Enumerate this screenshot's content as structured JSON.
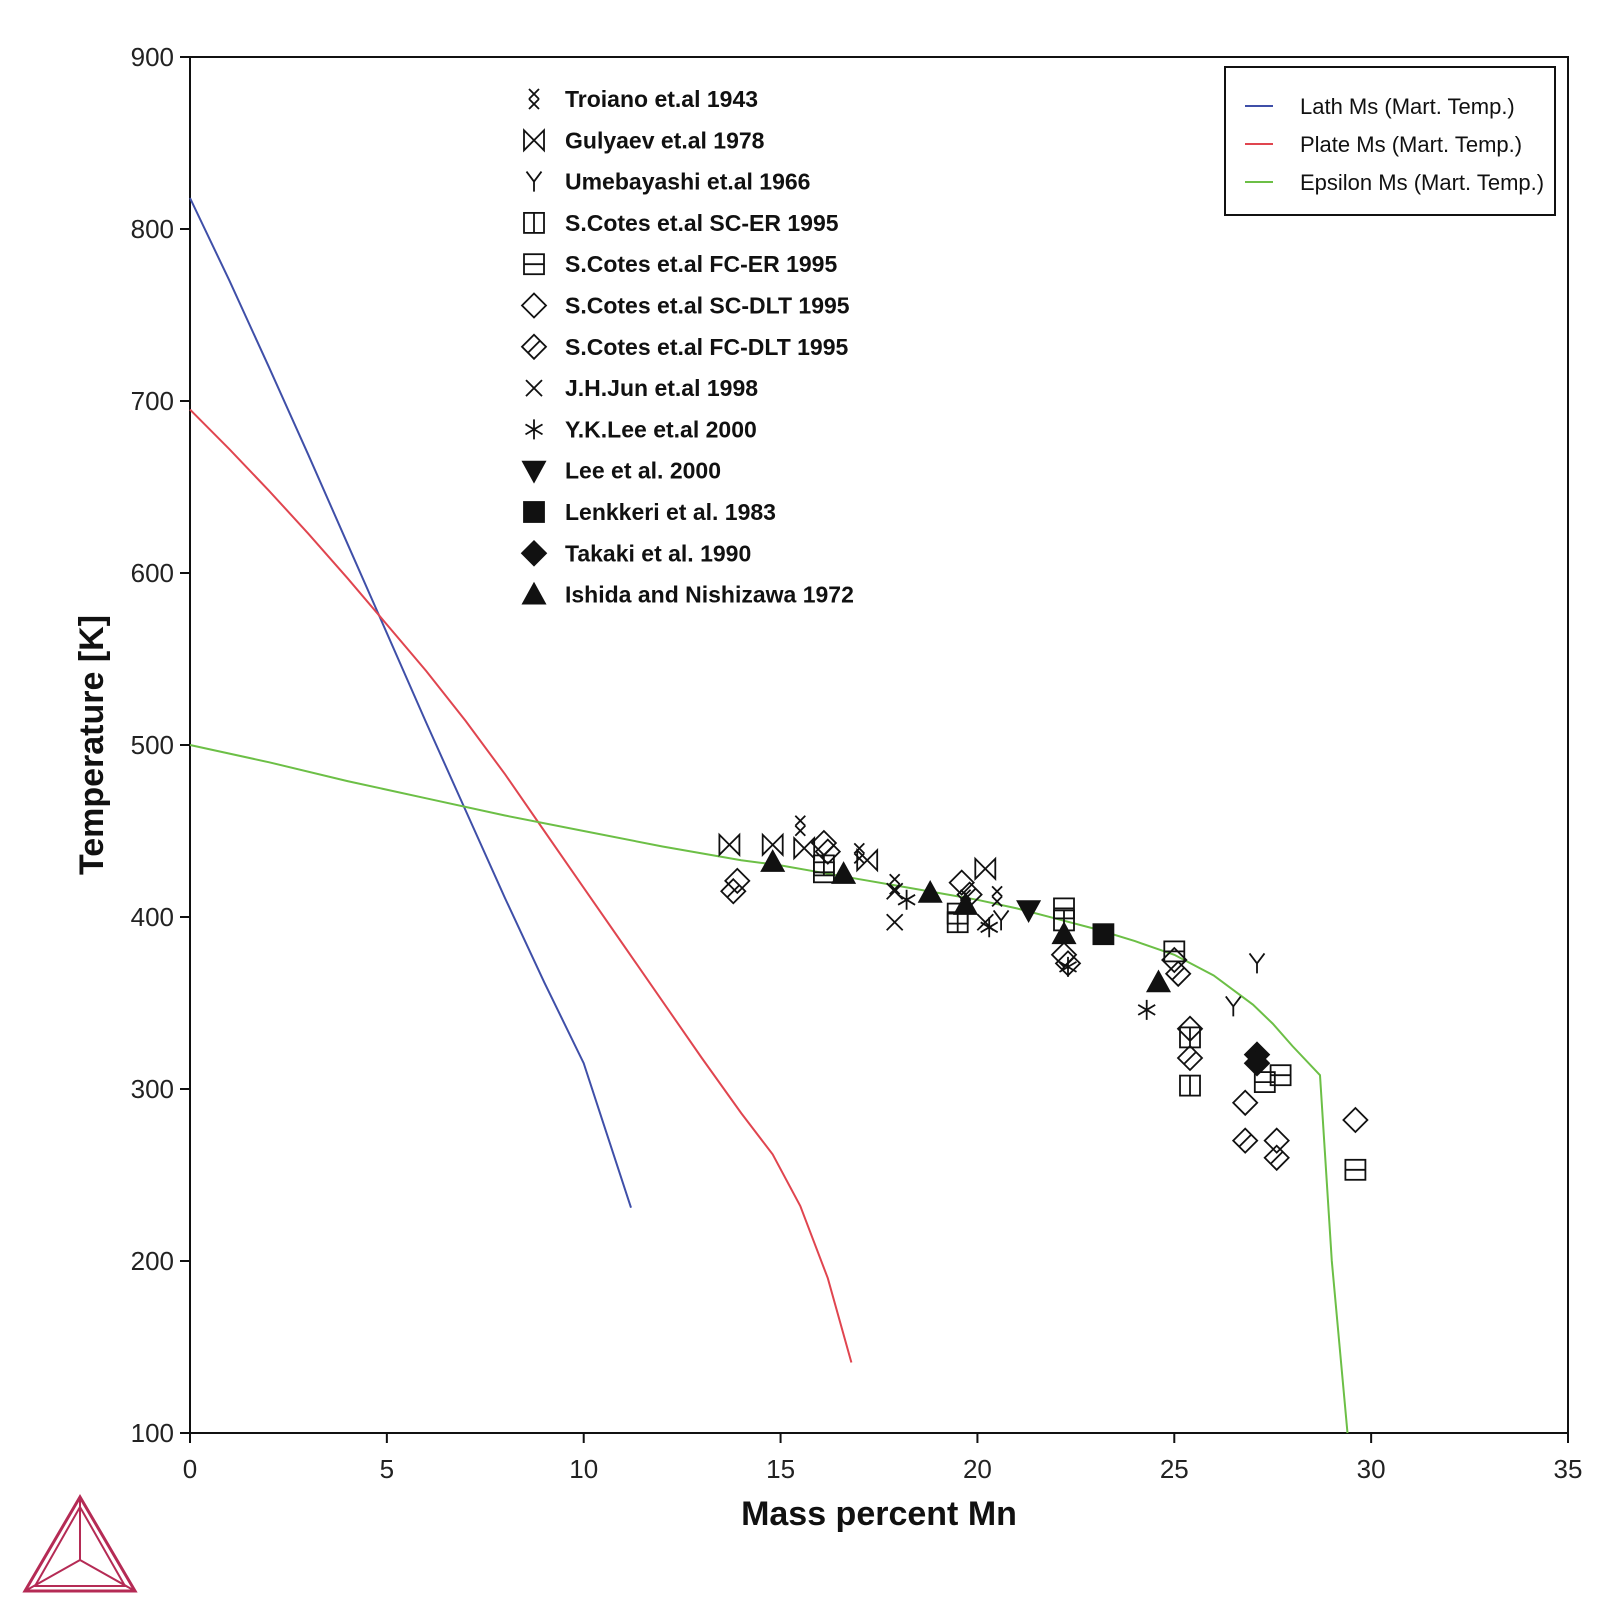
{
  "chart_data": {
    "type": "scatter",
    "xlabel": "Mass percent Mn",
    "ylabel": "Temperature [K]",
    "xlim": [
      0,
      35
    ],
    "ylim": [
      100,
      900
    ],
    "xticks": [
      0,
      5,
      10,
      15,
      20,
      25,
      30,
      35
    ],
    "yticks": [
      100,
      200,
      300,
      400,
      500,
      600,
      700,
      800,
      900
    ],
    "grid": false,
    "lines": [
      {
        "name": "Lath Ms (Mart. Temp.)",
        "color": "#3f4fa8",
        "points": [
          [
            0,
            818
          ],
          [
            1,
            770
          ],
          [
            2,
            720
          ],
          [
            3,
            669
          ],
          [
            4,
            617
          ],
          [
            5,
            565
          ],
          [
            6,
            513
          ],
          [
            7,
            462
          ],
          [
            8,
            411
          ],
          [
            9,
            362
          ],
          [
            10,
            315
          ],
          [
            10.5,
            280
          ],
          [
            11.2,
            231
          ]
        ]
      },
      {
        "name": "Plate Ms (Mart. Temp.)",
        "color": "#e0454f",
        "points": [
          [
            0,
            695
          ],
          [
            1,
            672
          ],
          [
            2,
            648
          ],
          [
            3,
            623
          ],
          [
            4,
            597
          ],
          [
            5,
            570
          ],
          [
            6,
            543
          ],
          [
            7,
            514
          ],
          [
            8,
            483
          ],
          [
            9,
            450
          ],
          [
            10,
            417
          ],
          [
            11,
            384
          ],
          [
            12,
            351
          ],
          [
            13,
            318
          ],
          [
            14,
            286
          ],
          [
            14.8,
            262
          ],
          [
            15.5,
            232
          ],
          [
            16.2,
            190
          ],
          [
            16.8,
            141
          ]
        ]
      },
      {
        "name": "Epsilon Ms (Mart. Temp.)",
        "color": "#6cbf46",
        "points": [
          [
            0,
            500
          ],
          [
            2,
            490
          ],
          [
            4,
            479
          ],
          [
            6,
            469
          ],
          [
            8,
            459
          ],
          [
            10,
            450
          ],
          [
            12,
            441
          ],
          [
            14,
            433
          ],
          [
            15,
            430
          ],
          [
            16,
            426
          ],
          [
            17,
            422
          ],
          [
            18,
            418
          ],
          [
            19,
            414
          ],
          [
            20,
            410
          ],
          [
            21,
            405
          ],
          [
            22,
            399
          ],
          [
            23,
            393
          ],
          [
            24,
            386
          ],
          [
            25,
            378
          ],
          [
            26,
            366
          ],
          [
            27,
            349
          ],
          [
            27.5,
            338
          ],
          [
            28,
            325
          ],
          [
            28.7,
            308
          ],
          [
            29,
            200
          ],
          [
            29.4,
            100
          ]
        ]
      }
    ],
    "legend_lines_position": "top-right",
    "legend_data_position": "top-center",
    "series": [
      {
        "name": "Troiano et.al 1943",
        "marker": "double-x",
        "points": [
          [
            15.5,
            453
          ],
          [
            17,
            437
          ],
          [
            17.9,
            419
          ],
          [
            19.7,
            410
          ],
          [
            20.5,
            412
          ]
        ]
      },
      {
        "name": "Gulyaev et.al 1978",
        "marker": "bowtie",
        "points": [
          [
            13.7,
            442
          ],
          [
            14.8,
            442
          ],
          [
            15.6,
            440
          ],
          [
            17.2,
            433
          ],
          [
            20.2,
            428
          ]
        ]
      },
      {
        "name": "Umebayashi et.al 1966",
        "marker": "y",
        "points": [
          [
            20.6,
            398
          ],
          [
            26.5,
            348
          ],
          [
            27.1,
            373
          ]
        ]
      },
      {
        "name": "S.Cotes et.al SC-ER 1995",
        "marker": "square-v",
        "points": [
          [
            16.1,
            430
          ],
          [
            19.5,
            397
          ],
          [
            22.2,
            398
          ],
          [
            25.4,
            330
          ],
          [
            25.4,
            302
          ]
        ]
      },
      {
        "name": "S.Cotes et.al FC-ER 1995",
        "marker": "square-h",
        "points": [
          [
            16.1,
            426
          ],
          [
            19.5,
            402
          ],
          [
            22.2,
            405
          ],
          [
            25,
            380
          ],
          [
            27.3,
            304
          ],
          [
            27.7,
            308
          ],
          [
            29.6,
            253
          ]
        ]
      },
      {
        "name": "S.Cotes et.al SC-DLT 1995",
        "marker": "diamond",
        "points": [
          [
            13.9,
            421
          ],
          [
            16.1,
            443
          ],
          [
            19.6,
            420
          ],
          [
            22.2,
            378
          ],
          [
            25,
            375
          ],
          [
            25.4,
            335
          ],
          [
            26.8,
            292
          ],
          [
            27.6,
            270
          ],
          [
            29.6,
            282
          ]
        ]
      },
      {
        "name": "S.Cotes et.al FC-DLT 1995",
        "marker": "diamond-slash",
        "points": [
          [
            13.8,
            415
          ],
          [
            16.2,
            438
          ],
          [
            19.8,
            413
          ],
          [
            22.3,
            373
          ],
          [
            25.1,
            367
          ],
          [
            25.4,
            318
          ],
          [
            26.8,
            270
          ],
          [
            27.6,
            260
          ]
        ]
      },
      {
        "name": "J.H.Jun et.al 1998",
        "marker": "x",
        "points": [
          [
            17.9,
            397
          ],
          [
            17.9,
            415
          ],
          [
            20.2,
            397
          ]
        ]
      },
      {
        "name": "Y.K.Lee et.al 2000",
        "marker": "asterisk",
        "points": [
          [
            18.2,
            410
          ],
          [
            20.3,
            394
          ],
          [
            22.3,
            371
          ],
          [
            24.3,
            346
          ]
        ]
      },
      {
        "name": "Lee et al. 2000",
        "marker": "triangle-down",
        "points": [
          [
            21.3,
            404
          ]
        ]
      },
      {
        "name": "Lenkkeri et al. 1983",
        "marker": "square-filled",
        "points": [
          [
            23.2,
            390
          ]
        ]
      },
      {
        "name": "Takaki et al. 1990",
        "marker": "diamond-filled",
        "points": [
          [
            27.1,
            320
          ],
          [
            27.1,
            315
          ]
        ]
      },
      {
        "name": "Ishida and Nishizawa 1972",
        "marker": "triangle-up",
        "points": [
          [
            14.8,
            432
          ],
          [
            16.6,
            425
          ],
          [
            18.8,
            414
          ],
          [
            19.7,
            407
          ],
          [
            22.2,
            390
          ],
          [
            24.6,
            362
          ]
        ]
      }
    ]
  },
  "logo": {
    "name": "thermo-calc-logo-icon",
    "color": "#b52b55"
  }
}
